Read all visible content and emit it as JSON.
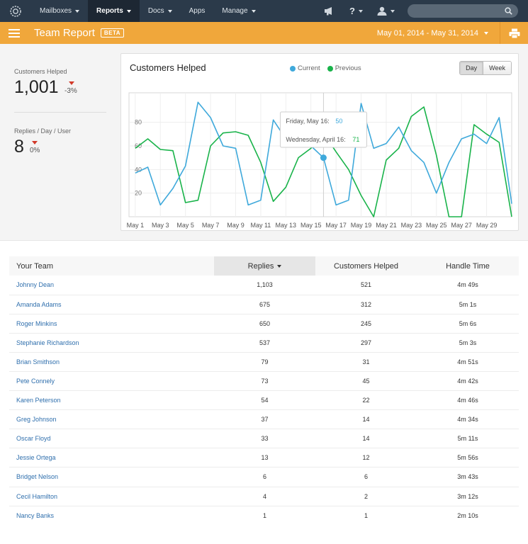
{
  "nav": {
    "items": [
      {
        "label": "Mailboxes",
        "has_caret": true,
        "active": false
      },
      {
        "label": "Reports",
        "has_caret": true,
        "active": true
      },
      {
        "label": "Docs",
        "has_caret": true,
        "active": false
      },
      {
        "label": "Apps",
        "has_caret": false,
        "active": false
      },
      {
        "label": "Manage",
        "has_caret": true,
        "active": false
      }
    ],
    "help_label": "?",
    "search_placeholder": ""
  },
  "report": {
    "title": "Team Report",
    "badge": "BETA",
    "date_range": "May 01, 2014 - May 31, 2014"
  },
  "stats": [
    {
      "label": "Customers Helped",
      "value": "1,001",
      "change": "-3%"
    },
    {
      "label": "Replies / Day / User",
      "value": "8",
      "change": "0%"
    }
  ],
  "chart": {
    "title": "Customers Helped",
    "toggle": [
      "Day",
      "Week"
    ],
    "active_toggle": "Day",
    "tooltip": {
      "current_label": "Friday, May 16:",
      "current_value": "50",
      "previous_label": "Wednesday, April 16:",
      "previous_value": "71"
    }
  },
  "chart_data": {
    "type": "line",
    "title": "Customers Helped",
    "xlabel": "",
    "ylabel": "",
    "x": [
      1,
      2,
      3,
      4,
      5,
      6,
      7,
      8,
      9,
      10,
      11,
      12,
      13,
      14,
      15,
      16,
      17,
      18,
      19,
      20,
      21,
      22,
      23,
      24,
      25,
      26,
      27,
      28,
      29,
      30,
      31
    ],
    "x_tick_labels": [
      "May 1",
      "May 3",
      "May 5",
      "May 7",
      "May 9",
      "May 11",
      "May 13",
      "May 15",
      "May 17",
      "May 19",
      "May 21",
      "May 23",
      "May 25",
      "May 27",
      "May 29"
    ],
    "x_tick_positions": [
      1,
      3,
      5,
      7,
      9,
      11,
      13,
      15,
      17,
      19,
      21,
      23,
      25,
      27,
      29
    ],
    "y_ticks": [
      20,
      40,
      60,
      80
    ],
    "ylim": [
      0,
      105
    ],
    "series": [
      {
        "name": "Current",
        "color": "#3fa9db",
        "values": [
          37,
          42,
          10,
          24,
          43,
          97,
          84,
          60,
          58,
          10,
          14,
          82,
          66,
          77,
          60,
          50,
          10,
          14,
          96,
          58,
          62,
          76,
          56,
          46,
          20,
          46,
          66,
          70,
          62,
          84,
          11
        ]
      },
      {
        "name": "Previous",
        "color": "#19b34a",
        "values": [
          58,
          66,
          57,
          56,
          12,
          14,
          60,
          71,
          72,
          69,
          46,
          13,
          25,
          50,
          58,
          71,
          55,
          40,
          18,
          0,
          48,
          58,
          85,
          93,
          52,
          0,
          0,
          78,
          70,
          63,
          0
        ]
      }
    ],
    "highlight": {
      "x": 16,
      "series": "Current",
      "value": 50
    },
    "grid": true,
    "legend_position": "top-center"
  },
  "team_table": {
    "columns": [
      "Your Team",
      "Replies",
      "Customers Helped",
      "Handle Time"
    ],
    "sorted_column": "Replies",
    "rows": [
      [
        "Johnny Dean",
        "1,103",
        "521",
        "4m 49s"
      ],
      [
        "Amanda Adams",
        "675",
        "312",
        "5m 1s"
      ],
      [
        "Roger Minkins",
        "650",
        "245",
        "5m 6s"
      ],
      [
        "Stephanie Richardson",
        "537",
        "297",
        "5m 3s"
      ],
      [
        "Brian Smithson",
        "79",
        "31",
        "4m 51s"
      ],
      [
        "Pete Connely",
        "73",
        "45",
        "4m 42s"
      ],
      [
        "Karen Peterson",
        "54",
        "22",
        "4m 46s"
      ],
      [
        "Greg Johnson",
        "37",
        "14",
        "4m 34s"
      ],
      [
        "Oscar Floyd",
        "33",
        "14",
        "5m 11s"
      ],
      [
        "Jessie Ortega",
        "13",
        "12",
        "5m 56s"
      ],
      [
        "Bridget Nelson",
        "6",
        "6",
        "3m 43s"
      ],
      [
        "Cecil Hamilton",
        "4",
        "2",
        "3m 12s"
      ],
      [
        "Nancy Banks",
        "1",
        "1",
        "2m 10s"
      ]
    ]
  },
  "colors": {
    "nav_bg": "#2b3a4a",
    "accent": "#f0a73b",
    "current": "#3fa9db",
    "previous": "#19b34a",
    "link": "#2f6fad",
    "negative": "#d23a2a"
  }
}
